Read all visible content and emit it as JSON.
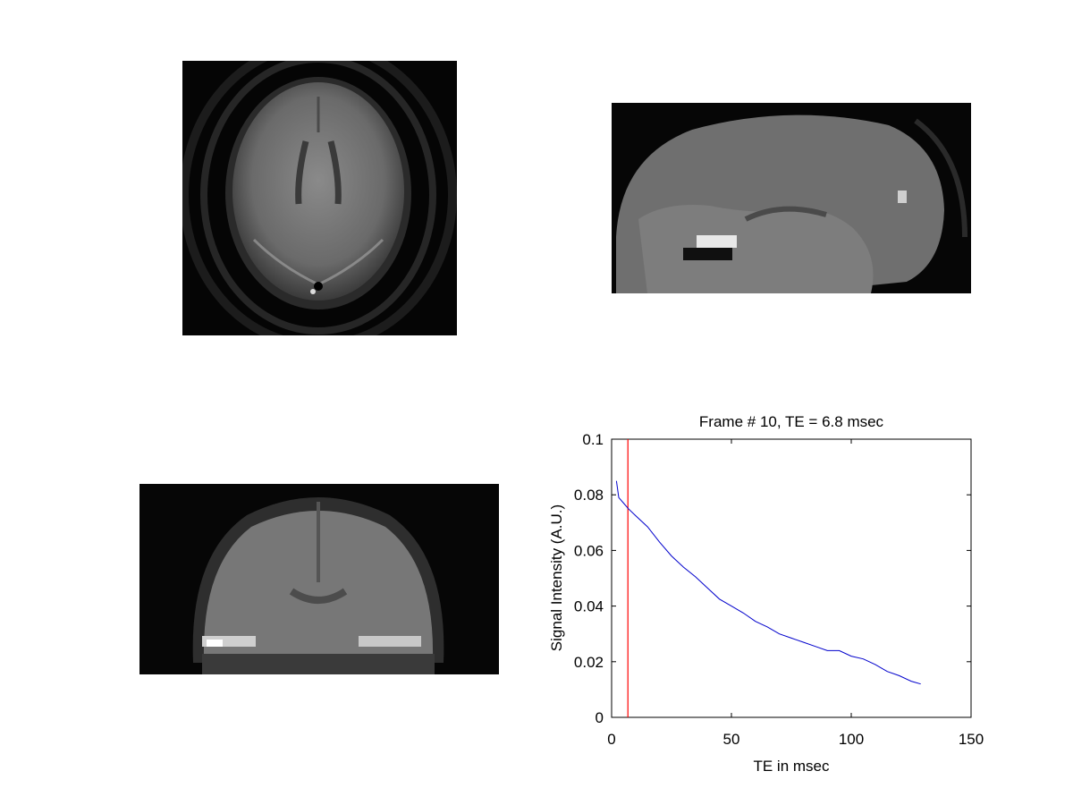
{
  "views": [
    {
      "name": "axial"
    },
    {
      "name": "sagittal"
    },
    {
      "name": "coronal"
    }
  ],
  "chart_data": {
    "type": "line",
    "title": "Frame # 10, TE = 6.8 msec",
    "xlabel": "TE in msec",
    "ylabel": "Signal Intensity (A.U.)",
    "xlim": [
      0,
      150
    ],
    "ylim": [
      0,
      0.1
    ],
    "xticks": [
      0,
      50,
      100,
      150
    ],
    "xtick_labels": [
      "0",
      "50",
      "100",
      "150"
    ],
    "yticks": [
      0,
      0.02,
      0.04,
      0.06,
      0.08,
      0.1
    ],
    "ytick_labels": [
      "0",
      "0.02",
      "0.04",
      "0.06",
      "0.08",
      "0.1"
    ],
    "grid": false,
    "marker_line": {
      "x": 6.8,
      "color": "#ff0000"
    },
    "series": [
      {
        "color": "#0000cc",
        "x": [
          2,
          3,
          5,
          7,
          10,
          15,
          20,
          25,
          30,
          35,
          40,
          45,
          50,
          55,
          60,
          65,
          70,
          75,
          80,
          85,
          90,
          95,
          100,
          105,
          110,
          115,
          120,
          125,
          129
        ],
        "y": [
          0.085,
          0.079,
          0.077,
          0.075,
          0.0725,
          0.0685,
          0.063,
          0.058,
          0.054,
          0.0505,
          0.0465,
          0.0425,
          0.04,
          0.0375,
          0.0345,
          0.0325,
          0.03,
          0.0285,
          0.027,
          0.0255,
          0.024,
          0.024,
          0.022,
          0.021,
          0.019,
          0.0165,
          0.015,
          0.013,
          0.012
        ]
      }
    ]
  }
}
